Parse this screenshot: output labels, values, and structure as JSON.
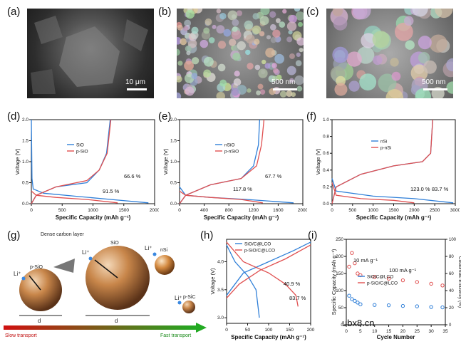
{
  "labels": {
    "a": "(a)",
    "b": "(b)",
    "c": "(c)",
    "d": "(d)",
    "e": "(e)",
    "f": "(f)",
    "g": "(g)",
    "h": "(h)",
    "i": "(i)"
  },
  "sem": {
    "a": {
      "scale": "10 μm"
    },
    "b": {
      "scale": "500 nm"
    },
    "c": {
      "scale": "500 nm"
    }
  },
  "schematic": {
    "dense_layer": "Dense carbon layer",
    "sio_label": "SiO",
    "psio_label": "p-SiO",
    "nsi_label": "nSi",
    "psic_label": "p-SiC",
    "li": "Li⁺",
    "dsio": "d",
    "slow": "Slow transport",
    "fast": "Fast transport"
  },
  "watermark": "ubx8.cn",
  "chart_data": [
    {
      "id": "d",
      "type": "line",
      "xlabel": "Specific Capacity (mAh g⁻¹)",
      "ylabel": "Voltage (V)",
      "xlim": [
        0,
        2000
      ],
      "ylim": [
        0,
        2.0
      ],
      "xticks": [
        0,
        500,
        1000,
        1500,
        2000
      ],
      "yticks": [
        0.0,
        0.5,
        1.0,
        1.5,
        2.0
      ],
      "series": [
        {
          "name": "SiO",
          "color": "#2f7fd8",
          "discharge": [
            [
              0,
              2.0
            ],
            [
              10,
              0.6
            ],
            [
              30,
              0.35
            ],
            [
              200,
              0.25
            ],
            [
              700,
              0.18
            ],
            [
              1300,
              0.1
            ],
            [
              1900,
              0.02
            ]
          ],
          "charge": [
            [
              0,
              0
            ],
            [
              80,
              0.2
            ],
            [
              400,
              0.4
            ],
            [
              900,
              0.5
            ],
            [
              1100,
              0.8
            ],
            [
              1220,
              1.2
            ],
            [
              1280,
              2.0
            ]
          ]
        },
        {
          "name": "p-SiO",
          "color": "#e05050",
          "discharge": [
            [
              0,
              0.3
            ],
            [
              80,
              0.2
            ],
            [
              400,
              0.15
            ],
            [
              900,
              0.1
            ],
            [
              1400,
              0.02
            ]
          ],
          "charge": [
            [
              0,
              0
            ],
            [
              80,
              0.2
            ],
            [
              400,
              0.4
            ],
            [
              900,
              0.55
            ],
            [
              1100,
              0.8
            ],
            [
              1230,
              1.2
            ],
            [
              1290,
              2.0
            ]
          ]
        }
      ],
      "annotations": [
        "91.5 %",
        "66.6 %"
      ]
    },
    {
      "id": "e",
      "type": "line",
      "xlabel": "Specific Capacity (mAh g⁻¹)",
      "ylabel": "Voltage (V)",
      "xlim": [
        0,
        2000
      ],
      "ylim": [
        0,
        2.0
      ],
      "xticks": [
        0,
        400,
        800,
        1200,
        1600,
        2000
      ],
      "yticks": [
        0.0,
        0.5,
        1.0,
        1.5,
        2.0
      ],
      "series": [
        {
          "name": "nSiO",
          "color": "#2f7fd8",
          "discharge": [
            [
              0,
              0.4
            ],
            [
              100,
              0.2
            ],
            [
              500,
              0.15
            ],
            [
              1100,
              0.1
            ],
            [
              1850,
              0.02
            ]
          ],
          "charge": [
            [
              0,
              0
            ],
            [
              100,
              0.2
            ],
            [
              500,
              0.45
            ],
            [
              1000,
              0.6
            ],
            [
              1200,
              0.9
            ],
            [
              1280,
              1.4
            ],
            [
              1300,
              2.0
            ]
          ]
        },
        {
          "name": "p-nSiO",
          "color": "#e05050",
          "discharge": [
            [
              0,
              0.3
            ],
            [
              100,
              0.2
            ],
            [
              500,
              0.15
            ],
            [
              1000,
              0.1
            ],
            [
              1350,
              0.02
            ]
          ],
          "charge": [
            [
              0,
              0
            ],
            [
              100,
              0.2
            ],
            [
              500,
              0.45
            ],
            [
              1000,
              0.6
            ],
            [
              1250,
              0.9
            ],
            [
              1330,
              1.4
            ],
            [
              1370,
              2.0
            ]
          ]
        }
      ],
      "annotations": [
        "117.8 %",
        "67.7 %"
      ]
    },
    {
      "id": "f",
      "type": "line",
      "xlabel": "Specific Capacity (mAh g⁻¹)",
      "ylabel": "Voltage (V)",
      "xlim": [
        0,
        3000
      ],
      "ylim": [
        0,
        1.0
      ],
      "xticks": [
        0,
        500,
        1000,
        1500,
        2000,
        2500,
        3000
      ],
      "yticks": [
        0.0,
        0.2,
        0.4,
        0.6,
        0.8,
        1.0
      ],
      "series": [
        {
          "name": "nSi",
          "color": "#2f7fd8",
          "discharge": [
            [
              0,
              0.3
            ],
            [
              100,
              0.15
            ],
            [
              1000,
              0.09
            ],
            [
              2000,
              0.06
            ],
            [
              2950,
              0.01
            ]
          ],
          "charge": [
            [
              0,
              0
            ],
            [
              100,
              0.2
            ],
            [
              700,
              0.35
            ],
            [
              1500,
              0.45
            ],
            [
              2200,
              0.5
            ],
            [
              2400,
              0.6
            ],
            [
              2450,
              1.0
            ]
          ]
        },
        {
          "name": "p-nSi",
          "color": "#e05050",
          "discharge": [
            [
              0,
              0.25
            ],
            [
              100,
              0.1
            ],
            [
              700,
              0.06
            ],
            [
              1500,
              0.04
            ],
            [
              2000,
              0.01
            ]
          ],
          "charge": [
            [
              0,
              0
            ],
            [
              100,
              0.2
            ],
            [
              700,
              0.35
            ],
            [
              1500,
              0.45
            ],
            [
              2200,
              0.5
            ],
            [
              2400,
              0.6
            ],
            [
              2450,
              1.0
            ]
          ]
        }
      ],
      "annotations": [
        "123.0 %",
        "83.7 %"
      ]
    },
    {
      "id": "h",
      "type": "line",
      "xlabel": "Specific Capacity (mAh g⁻¹)",
      "ylabel": "Voltage (V)",
      "xlim": [
        0,
        200
      ],
      "ylim": [
        2.9,
        4.4
      ],
      "xticks": [
        0,
        50,
        100,
        150,
        200
      ],
      "yticks": [
        3.0,
        3.5,
        4.0
      ],
      "series": [
        {
          "name": "SiO/C@LCO",
          "color": "#2f7fd8",
          "discharge": [
            [
              0,
              4.3
            ],
            [
              20,
              4.0
            ],
            [
              50,
              3.75
            ],
            [
              70,
              3.5
            ],
            [
              78,
              3.0
            ]
          ],
          "charge": [
            [
              0,
              3.4
            ],
            [
              40,
              3.8
            ],
            [
              100,
              4.0
            ],
            [
              160,
              4.2
            ],
            [
              200,
              4.35
            ]
          ]
        },
        {
          "name": "p-SiO/C@LCO",
          "color": "#e05050",
          "discharge": [
            [
              0,
              4.35
            ],
            [
              40,
              4.0
            ],
            [
              100,
              3.8
            ],
            [
              140,
              3.6
            ],
            [
              165,
              3.4
            ],
            [
              170,
              3.2
            ]
          ],
          "charge": [
            [
              0,
              3.35
            ],
            [
              30,
              3.6
            ],
            [
              80,
              3.85
            ],
            [
              140,
              4.05
            ],
            [
              200,
              4.3
            ]
          ]
        }
      ],
      "annotations": [
        "40.9 %",
        "83.7 %"
      ]
    },
    {
      "id": "i",
      "type": "scatter",
      "xlabel": "Cycle Number",
      "ylabel": "Specific Capacity (mAh g⁻¹)",
      "y2label": "Coulombic Efficiency (%)",
      "xlim": [
        0,
        35
      ],
      "ylim": [
        0,
        250
      ],
      "y2lim": [
        0,
        100
      ],
      "xticks": [
        0,
        5,
        10,
        15,
        20,
        25,
        30,
        35
      ],
      "yticks": [
        0,
        50,
        100,
        150,
        200,
        250
      ],
      "y2ticks": [
        0,
        20,
        40,
        60,
        80,
        100
      ],
      "series": [
        {
          "name": "SiO/C@LCO",
          "color": "#2f7fd8",
          "values": [
            [
              1,
              85
            ],
            [
              2,
              75
            ],
            [
              3,
              70
            ],
            [
              4,
              65
            ],
            [
              5,
              60
            ],
            [
              10,
              58
            ],
            [
              15,
              57
            ],
            [
              20,
              55
            ],
            [
              25,
              54
            ],
            [
              30,
              52
            ],
            [
              34,
              51
            ]
          ]
        },
        {
          "name": "p-SiO/C@LCO",
          "color": "#e05050",
          "values": [
            [
              1,
              170
            ],
            [
              2,
              210
            ],
            [
              3,
              180
            ],
            [
              4,
              150
            ],
            [
              5,
              145
            ],
            [
              10,
              140
            ],
            [
              15,
              135
            ],
            [
              20,
              130
            ],
            [
              25,
              125
            ],
            [
              30,
              120
            ],
            [
              34,
              115
            ]
          ]
        }
      ],
      "annotations": [
        "10 mA g⁻¹",
        "100 mA g⁻¹"
      ]
    }
  ]
}
